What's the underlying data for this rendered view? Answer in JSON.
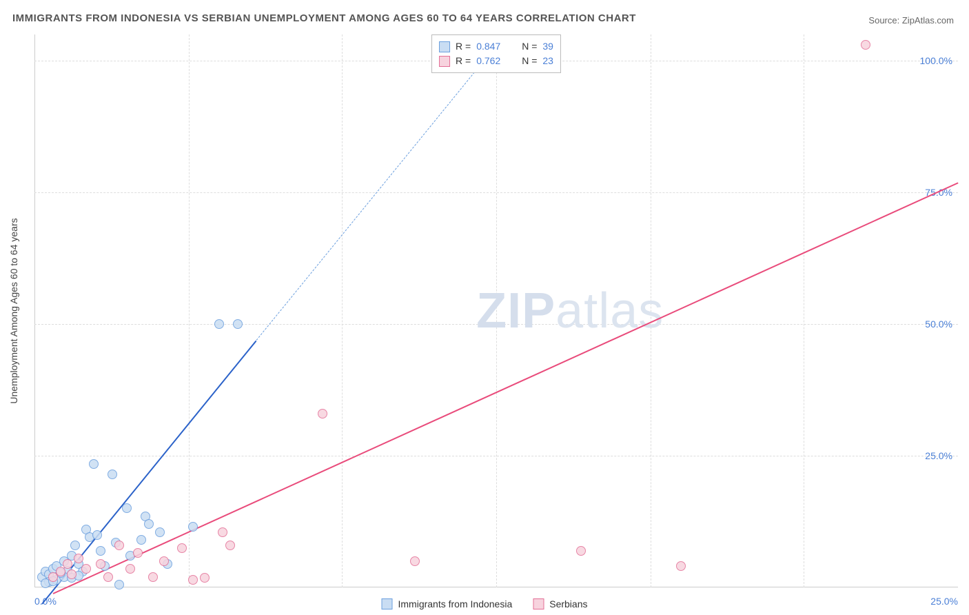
{
  "title": "IMMIGRANTS FROM INDONESIA VS SERBIAN UNEMPLOYMENT AMONG AGES 60 TO 64 YEARS CORRELATION CHART",
  "source_label": "Source:",
  "source_name": "ZipAtlas.com",
  "watermark_bold": "ZIP",
  "watermark_light": "atlas",
  "chart": {
    "type": "scatter",
    "ylabel": "Unemployment Among Ages 60 to 64 years",
    "xlim": [
      0,
      25
    ],
    "ylim": [
      0,
      105
    ],
    "xticks": [
      0,
      25
    ],
    "xtick_labels": [
      "0.0%",
      "25.0%"
    ],
    "yticks": [
      25,
      50,
      75,
      100
    ],
    "ytick_labels": [
      "25.0%",
      "50.0%",
      "75.0%",
      "100.0%"
    ],
    "x_gridlines": [
      4.17,
      8.33,
      12.5,
      16.67,
      20.83
    ],
    "grid_color": "#dddddd",
    "axis_color": "#cccccc",
    "background_color": "#ffffff",
    "title_color": "#555555",
    "title_fontsize": 15,
    "label_fontsize": 14,
    "tick_color": "#4a7fd6",
    "marker_radius": 7,
    "marker_stroke_width": 1,
    "trend_line_width": 2,
    "series": [
      {
        "key": "indonesia",
        "label": "Immigrants from Indonesia",
        "fill": "#c9ddf3",
        "stroke": "#6b9fde",
        "line_color": "#2b62c9",
        "r": "0.847",
        "n": "39",
        "trend": {
          "x1": 0.2,
          "y1": -3,
          "x2": 6.0,
          "y2": 47,
          "extend_to_x": 13.0,
          "dashed_after_solid": true
        },
        "points": [
          [
            0.2,
            2.0
          ],
          [
            0.3,
            3.0
          ],
          [
            0.4,
            2.5
          ],
          [
            0.5,
            3.5
          ],
          [
            0.6,
            4.0
          ],
          [
            0.7,
            2.8
          ],
          [
            0.8,
            5.0
          ],
          [
            0.9,
            3.2
          ],
          [
            1.0,
            6.0
          ],
          [
            1.1,
            8.0
          ],
          [
            1.2,
            4.5
          ],
          [
            1.3,
            3.0
          ],
          [
            1.4,
            11.0
          ],
          [
            1.5,
            9.5
          ],
          [
            1.6,
            23.5
          ],
          [
            1.7,
            10.0
          ],
          [
            1.8,
            7.0
          ],
          [
            1.9,
            4.0
          ],
          [
            2.1,
            21.5
          ],
          [
            2.2,
            8.5
          ],
          [
            2.3,
            0.5
          ],
          [
            2.5,
            15.0
          ],
          [
            2.6,
            6.0
          ],
          [
            2.9,
            9.0
          ],
          [
            3.0,
            13.5
          ],
          [
            3.1,
            12.0
          ],
          [
            3.4,
            10.5
          ],
          [
            3.6,
            4.5
          ],
          [
            4.3,
            11.5
          ],
          [
            5.0,
            50.0
          ],
          [
            5.5,
            50.0
          ],
          [
            0.4,
            1.0
          ],
          [
            0.6,
            1.5
          ],
          [
            0.8,
            2.0
          ],
          [
            1.0,
            1.8
          ],
          [
            1.2,
            2.2
          ],
          [
            0.3,
            0.8
          ],
          [
            0.5,
            1.2
          ],
          [
            0.7,
            2.8
          ]
        ]
      },
      {
        "key": "serbians",
        "label": "Serbians",
        "fill": "#f7d3de",
        "stroke": "#e36f96",
        "line_color": "#e94b7b",
        "r": "0.762",
        "n": "23",
        "trend": {
          "x1": 0.5,
          "y1": -1,
          "x2": 25.0,
          "y2": 77,
          "dashed_after_solid": false
        },
        "points": [
          [
            0.5,
            2.0
          ],
          [
            0.7,
            3.0
          ],
          [
            0.9,
            4.5
          ],
          [
            1.0,
            2.5
          ],
          [
            1.2,
            5.5
          ],
          [
            1.4,
            3.5
          ],
          [
            1.8,
            4.5
          ],
          [
            2.0,
            2.0
          ],
          [
            2.3,
            8.0
          ],
          [
            2.6,
            3.5
          ],
          [
            2.8,
            6.5
          ],
          [
            3.2,
            2.0
          ],
          [
            3.5,
            5.0
          ],
          [
            4.0,
            7.5
          ],
          [
            4.3,
            1.5
          ],
          [
            4.6,
            1.8
          ],
          [
            5.1,
            10.5
          ],
          [
            5.3,
            8.0
          ],
          [
            7.8,
            33.0
          ],
          [
            10.3,
            5.0
          ],
          [
            14.8,
            7.0
          ],
          [
            17.5,
            4.0
          ],
          [
            22.5,
            103.0
          ]
        ]
      }
    ]
  },
  "legend_top": {
    "r_label": "R =",
    "n_label": "N ="
  }
}
